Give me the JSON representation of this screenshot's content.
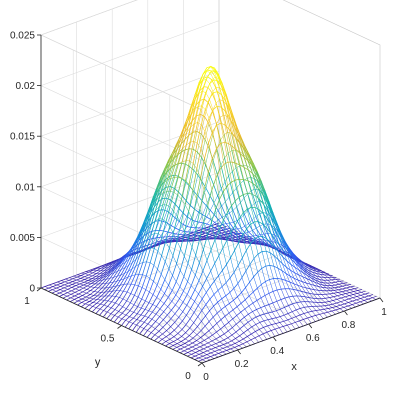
{
  "chart_data": {
    "type": "surface",
    "title": "",
    "xlabel": "x",
    "ylabel": "y",
    "zlabel": "",
    "xlim": [
      0,
      1
    ],
    "ylim": [
      0,
      1
    ],
    "zlim": [
      0,
      0.025
    ],
    "x_ticks": [
      "0",
      "0.2",
      "0.4",
      "0.6",
      "0.8",
      "1"
    ],
    "y_ticks": [
      "0",
      "0.5",
      "1"
    ],
    "z_ticks": [
      "0",
      "0.005",
      "0.01",
      "0.015",
      "0.02",
      "0.025"
    ],
    "x_tick_values": [
      0,
      0.2,
      0.4,
      0.6,
      0.8,
      1
    ],
    "y_tick_values": [
      0,
      0.5,
      1
    ],
    "z_tick_values": [
      0,
      0.005,
      0.01,
      0.015,
      0.02,
      0.025
    ],
    "z_peak": 0.0215,
    "colormap": "parula",
    "colormap_stops": [
      "#3e26a8",
      "#2e5ef5",
      "#1296d5",
      "#17b8a9",
      "#86c64a",
      "#e7b82d",
      "#f9d426",
      "#f9fb0e"
    ],
    "grid": true,
    "legend": "none"
  }
}
